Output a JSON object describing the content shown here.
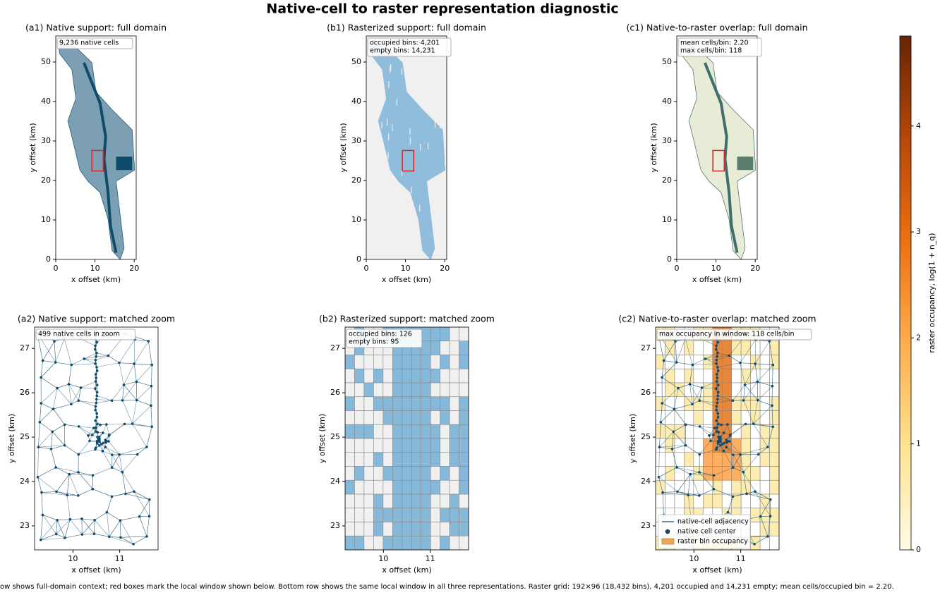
{
  "title": "Native-cell to raster representation diagnostic",
  "caption": "ow shows full-domain context; red boxes mark the local window shown below. Bottom row shows the same local window in all three representations. Raster grid: 192×96 (18,432 bins), 4,201 occupied and 14,231 empty; mean cells/occupied bin = 2.20.",
  "chart_data": [
    {
      "type": "mesh",
      "title": "(a1) Native support: full domain",
      "xlabel": "x offset (km)",
      "ylabel": "y offset (km)",
      "xlim": [
        0,
        20.5
      ],
      "ylim": [
        0,
        56.6
      ],
      "xticks": [
        0,
        10,
        20
      ],
      "yticks": [
        0,
        10,
        20,
        30,
        40,
        50
      ],
      "annotation": [
        "9,236 native cells"
      ],
      "color": "#0f4c6b",
      "window": {
        "xlim": [
          9.2,
          12.1
        ],
        "ylim": [
          22.4,
          27.6
        ]
      }
    },
    {
      "type": "raster",
      "title": "(b1) Rasterized support: full domain",
      "xlabel": "x offset (km)",
      "ylabel": "y offset (km)",
      "xlim": [
        0,
        20.5
      ],
      "ylim": [
        0,
        56.6
      ],
      "xticks": [
        0,
        10,
        20
      ],
      "yticks": [
        0,
        10,
        20,
        30,
        40,
        50
      ],
      "annotation": [
        "occupied bins: 4,201",
        "empty bins: 14,231"
      ],
      "color": "#86b8da",
      "window": {
        "xlim": [
          9.2,
          12.1
        ],
        "ylim": [
          22.4,
          27.6
        ]
      }
    },
    {
      "type": "overlay",
      "title": "(c1) Native-to-raster overlap: full domain",
      "xlabel": "x offset (km)",
      "ylabel": "y offset (km)",
      "xlim": [
        0,
        20.5
      ],
      "ylim": [
        0,
        56.6
      ],
      "xticks": [
        0,
        10,
        20
      ],
      "yticks": [
        0,
        10,
        20,
        30,
        40,
        50
      ],
      "annotation": [
        "mean cells/bin: 2.20",
        "max cells/bin: 118"
      ],
      "color": "#3d6a5c",
      "window": {
        "xlim": [
          9.2,
          12.1
        ],
        "ylim": [
          22.4,
          27.6
        ]
      }
    },
    {
      "type": "mesh",
      "title": "(a2) Native support: matched zoom",
      "xlabel": "x offset (km)",
      "ylabel": "y offset (km)",
      "xlim": [
        9.18,
        11.82
      ],
      "ylim": [
        22.46,
        27.48
      ],
      "xticks": [
        10,
        11
      ],
      "yticks": [
        23,
        24,
        25,
        26,
        27
      ],
      "annotation": [
        "499 native cells in zoom"
      ],
      "color": "#0f4c6b"
    },
    {
      "type": "raster",
      "title": "(b2) Rasterized support: matched zoom",
      "xlabel": "x offset (km)",
      "ylabel": "y offset (km)",
      "xlim": [
        9.18,
        11.82
      ],
      "ylim": [
        22.46,
        27.48
      ],
      "xticks": [
        10,
        11
      ],
      "yticks": [
        23,
        24,
        25,
        26,
        27
      ],
      "annotation": [
        "occupied bins: 126",
        "empty bins: 95"
      ],
      "color": "#86b8da"
    },
    {
      "type": "overlay",
      "title": "(c2) Native-to-raster overlap: matched zoom",
      "xlabel": "x offset (km)",
      "ylabel": "y offset (km)",
      "xlim": [
        9.18,
        11.82
      ],
      "ylim": [
        22.46,
        27.48
      ],
      "xticks": [
        10,
        11
      ],
      "yticks": [
        23,
        24,
        25,
        26,
        27
      ],
      "annotation": [
        "max occupancy in window: 118 cells/bin"
      ],
      "color": "#0f4c6b",
      "legend": [
        {
          "name": "native-cell adjacency",
          "color": "#3e6a85"
        },
        {
          "name": "native cell center",
          "color": "#0f4c6b"
        },
        {
          "name": "raster bin occupancy",
          "color": "#e8a857"
        }
      ]
    },
    {
      "type": "colorbar",
      "ylabel": "raster occupancy, log(1 + n_q)",
      "ylim": [
        0,
        4.85
      ],
      "yticks": [
        0,
        1,
        2,
        3,
        4
      ],
      "colors": [
        "#fffbe5",
        "#fee391",
        "#fdae50",
        "#ec7014",
        "#b5480b",
        "#662506"
      ]
    }
  ]
}
